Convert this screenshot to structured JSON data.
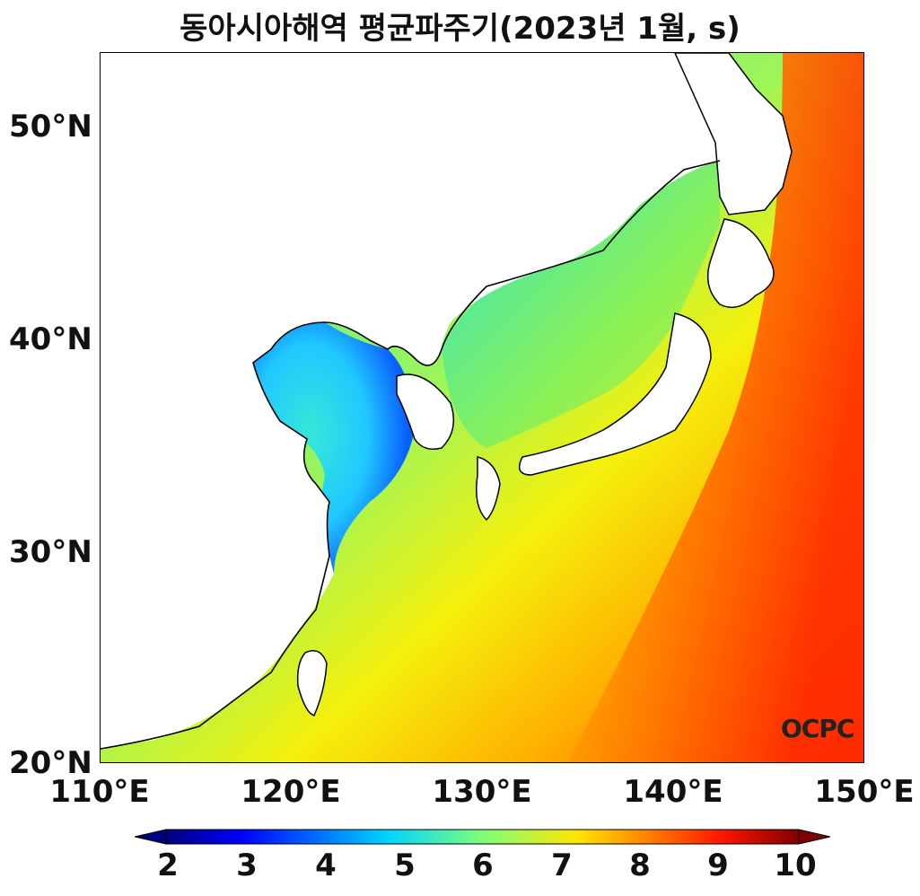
{
  "title": "동아시아해역 평균파주기(2023년 1월, s)",
  "map": {
    "lon_range": [
      110,
      150
    ],
    "lat_range": [
      20,
      53.5
    ],
    "lon_ticks": [
      "110°E",
      "120°E",
      "130°E",
      "140°E",
      "150°E"
    ],
    "lat_ticks": [
      "20°N",
      "30°N",
      "40°N",
      "50°N"
    ],
    "colormap": "jet"
  },
  "colorbar": {
    "min": 2,
    "max": 10,
    "labels": [
      "2",
      "3",
      "4",
      "5",
      "6",
      "7",
      "8",
      "9",
      "10"
    ],
    "extend": "both"
  },
  "logo_text": "OCPC"
}
